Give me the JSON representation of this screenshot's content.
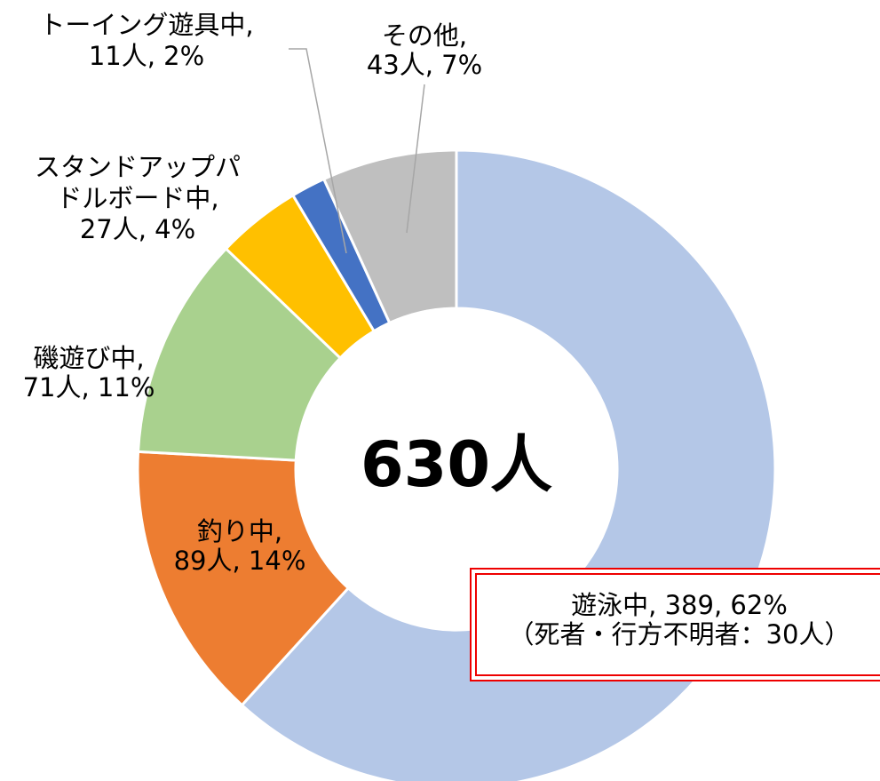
{
  "chart_data": {
    "type": "donut",
    "center_label": "630人",
    "categories": [
      "遊泳中",
      "釣り中",
      "磯遊び中",
      "スタンドアップパドルボード中",
      "トーイング遊具中",
      "その他"
    ],
    "values": [
      389,
      89,
      71,
      27,
      11,
      43
    ],
    "colors": [
      "#b4c7e7",
      "#ed7d31",
      "#a9d18e",
      "#ffc000",
      "#4472c4",
      "#bfbfbf"
    ],
    "data_labels": [
      [
        "遊泳中, 389, 62%",
        "（死者・行方不明者：30人）"
      ],
      [
        "釣り中,",
        "89人, 14%"
      ],
      [
        "磯遊び中,",
        "71人, 11%"
      ],
      [
        "スタンドアップパ",
        "ドルボード中,",
        "27人, 4%"
      ],
      [
        "トーイング遊具中,",
        "11人, 2%"
      ],
      [
        "その他,",
        "43人, 7%"
      ]
    ]
  }
}
